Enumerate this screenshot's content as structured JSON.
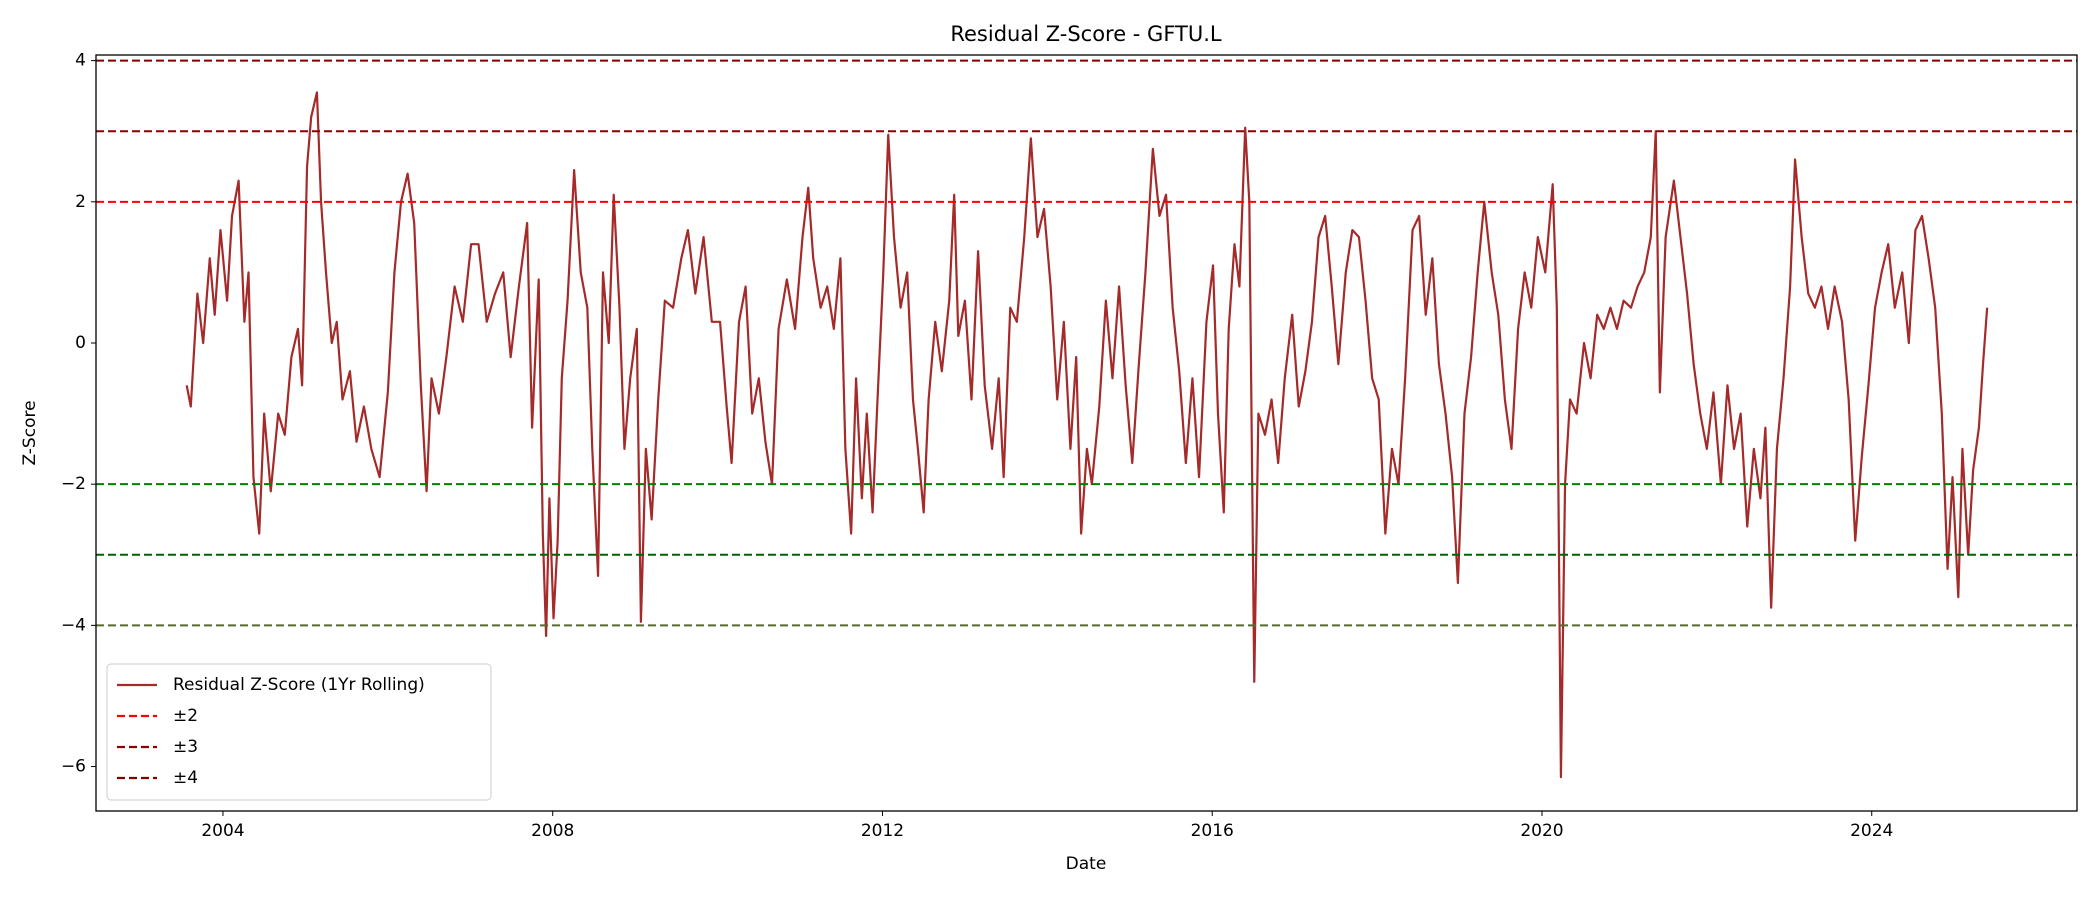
{
  "chart_data": {
    "type": "line",
    "title": "Residual Z-Score - GFTU.L",
    "x_label": "Date",
    "y_label": "Z-Score",
    "x": [
      2003.56,
      2003.61,
      2003.69,
      2003.76,
      2003.84,
      2003.9,
      2003.97,
      2004.05,
      2004.11,
      2004.19,
      2004.26,
      2004.31,
      2004.37,
      2004.44,
      2004.5,
      2004.58,
      2004.67,
      2004.75,
      2004.83,
      2004.91,
      2004.96,
      2005.02,
      2005.07,
      2005.14,
      2005.19,
      2005.25,
      2005.32,
      2005.38,
      2005.45,
      2005.54,
      2005.62,
      2005.71,
      2005.8,
      2005.9,
      2006.0,
      2006.08,
      2006.16,
      2006.24,
      2006.32,
      2006.4,
      2006.47,
      2006.53,
      2006.62,
      2006.71,
      2006.81,
      2006.91,
      2007.01,
      2007.1,
      2007.2,
      2007.3,
      2007.4,
      2007.49,
      2007.59,
      2007.69,
      2007.75,
      2007.83,
      2007.88,
      2007.92,
      2007.96,
      2008.01,
      2008.06,
      2008.11,
      2008.18,
      2008.26,
      2008.34,
      2008.42,
      2008.48,
      2008.55,
      2008.61,
      2008.68,
      2008.74,
      2008.81,
      2008.87,
      2008.94,
      2009.02,
      2009.07,
      2009.13,
      2009.2,
      2009.28,
      2009.36,
      2009.46,
      2009.56,
      2009.64,
      2009.73,
      2009.83,
      2009.93,
      2010.03,
      2010.11,
      2010.17,
      2010.26,
      2010.34,
      2010.42,
      2010.5,
      2010.58,
      2010.66,
      2010.74,
      2010.84,
      2010.94,
      2011.03,
      2011.1,
      2011.16,
      2011.25,
      2011.33,
      2011.41,
      2011.49,
      2011.55,
      2011.62,
      2011.68,
      2011.75,
      2011.81,
      2011.88,
      2011.94,
      2012.01,
      2012.07,
      2012.14,
      2012.22,
      2012.3,
      2012.37,
      2012.43,
      2012.5,
      2012.56,
      2012.64,
      2012.72,
      2012.81,
      2012.87,
      2012.92,
      2013.0,
      2013.08,
      2013.16,
      2013.24,
      2013.33,
      2013.41,
      2013.47,
      2013.55,
      2013.63,
      2013.72,
      2013.8,
      2013.88,
      2013.96,
      2014.04,
      2014.12,
      2014.2,
      2014.28,
      2014.35,
      2014.41,
      2014.48,
      2014.54,
      2014.63,
      2014.71,
      2014.79,
      2014.87,
      2014.95,
      2015.03,
      2015.11,
      2015.19,
      2015.28,
      2015.36,
      2015.44,
      2015.52,
      2015.6,
      2015.68,
      2015.76,
      2015.84,
      2015.93,
      2016.01,
      2016.07,
      2016.14,
      2016.2,
      2016.27,
      2016.33,
      2016.4,
      2016.45,
      2016.51,
      2016.56,
      2016.64,
      2016.72,
      2016.8,
      2016.88,
      2016.97,
      2017.05,
      2017.13,
      2017.21,
      2017.29,
      2017.37,
      2017.45,
      2017.53,
      2017.62,
      2017.7,
      2017.78,
      2017.86,
      2017.94,
      2018.02,
      2018.1,
      2018.18,
      2018.26,
      2018.34,
      2018.43,
      2018.51,
      2018.59,
      2018.67,
      2018.75,
      2018.83,
      2018.91,
      2018.98,
      2019.06,
      2019.14,
      2019.22,
      2019.3,
      2019.39,
      2019.47,
      2019.55,
      2019.63,
      2019.71,
      2019.79,
      2019.87,
      2019.95,
      2020.04,
      2020.13,
      2020.18,
      2020.23,
      2020.28,
      2020.34,
      2020.42,
      2020.51,
      2020.59,
      2020.67,
      2020.75,
      2020.83,
      2020.91,
      2020.99,
      2021.08,
      2021.16,
      2021.24,
      2021.32,
      2021.38,
      2021.43,
      2021.5,
      2021.6,
      2021.68,
      2021.76,
      2021.84,
      2021.92,
      2022.0,
      2022.08,
      2022.17,
      2022.25,
      2022.33,
      2022.41,
      2022.49,
      2022.57,
      2022.65,
      2022.71,
      2022.78,
      2022.85,
      2022.93,
      2023.01,
      2023.07,
      2023.15,
      2023.23,
      2023.31,
      2023.39,
      2023.47,
      2023.55,
      2023.64,
      2023.72,
      2023.8,
      2023.88,
      2023.96,
      2024.04,
      2024.12,
      2024.2,
      2024.28,
      2024.37,
      2024.45,
      2024.53,
      2024.61,
      2024.69,
      2024.77,
      2024.85,
      2024.92,
      2024.98,
      2025.05,
      2025.1,
      2025.17,
      2025.23,
      2025.3,
      2025.35,
      2025.4
    ],
    "series": [
      {
        "name": "Residual Z-Score (1Yr Rolling)",
        "color": "#a52a2a",
        "values": [
          -0.6,
          -0.9,
          0.7,
          0.0,
          1.2,
          0.4,
          1.6,
          0.6,
          1.8,
          2.3,
          0.3,
          1.0,
          -1.9,
          -2.7,
          -1.0,
          -2.1,
          -1.0,
          -1.3,
          -0.2,
          0.2,
          -0.6,
          2.5,
          3.2,
          3.55,
          2.0,
          1.0,
          0.0,
          0.3,
          -0.8,
          -0.4,
          -1.4,
          -0.9,
          -1.5,
          -1.9,
          -0.7,
          1.0,
          2.0,
          2.4,
          1.7,
          -0.6,
          -2.1,
          -0.5,
          -1.0,
          -0.2,
          0.8,
          0.3,
          1.4,
          1.4,
          0.3,
          0.7,
          1.0,
          -0.2,
          0.8,
          1.7,
          -1.2,
          0.9,
          -2.7,
          -4.15,
          -2.2,
          -3.9,
          -2.8,
          -0.5,
          0.6,
          2.45,
          1.0,
          0.5,
          -1.5,
          -3.3,
          1.0,
          0.0,
          2.1,
          0.5,
          -1.5,
          -0.5,
          0.2,
          -3.95,
          -1.5,
          -2.5,
          -0.8,
          0.6,
          0.5,
          1.2,
          1.6,
          0.7,
          1.5,
          0.3,
          0.3,
          -0.9,
          -1.7,
          0.3,
          0.8,
          -1.0,
          -0.5,
          -1.4,
          -2.0,
          0.2,
          0.9,
          0.2,
          1.5,
          2.2,
          1.2,
          0.5,
          0.8,
          0.2,
          1.2,
          -1.5,
          -2.7,
          -0.5,
          -2.2,
          -1.0,
          -2.4,
          -0.8,
          1.0,
          2.95,
          1.5,
          0.5,
          1.0,
          -0.8,
          -1.5,
          -2.4,
          -0.8,
          0.3,
          -0.4,
          0.6,
          2.1,
          0.1,
          0.6,
          -0.8,
          1.3,
          -0.6,
          -1.5,
          -0.5,
          -1.9,
          0.5,
          0.3,
          1.5,
          2.9,
          1.5,
          1.9,
          0.8,
          -0.8,
          0.3,
          -1.5,
          -0.2,
          -2.7,
          -1.5,
          -2.0,
          -0.9,
          0.6,
          -0.5,
          0.8,
          -0.6,
          -1.7,
          -0.3,
          1.0,
          2.75,
          1.8,
          2.1,
          0.5,
          -0.4,
          -1.7,
          -0.5,
          -1.9,
          0.3,
          1.1,
          -1.0,
          -2.4,
          0.2,
          1.4,
          0.8,
          3.05,
          2.0,
          -4.8,
          -1.0,
          -1.3,
          -0.8,
          -1.7,
          -0.5,
          0.4,
          -0.9,
          -0.4,
          0.3,
          1.5,
          1.8,
          0.8,
          -0.3,
          1.0,
          1.6,
          1.5,
          0.6,
          -0.5,
          -0.8,
          -2.7,
          -1.5,
          -2.0,
          -0.5,
          1.6,
          1.8,
          0.4,
          1.2,
          -0.3,
          -1.0,
          -1.9,
          -3.4,
          -1.0,
          -0.2,
          1.0,
          2.0,
          1.0,
          0.4,
          -0.8,
          -1.5,
          0.2,
          1.0,
          0.5,
          1.5,
          1.0,
          2.25,
          0.5,
          -6.15,
          -2.0,
          -0.8,
          -1.0,
          0.0,
          -0.5,
          0.4,
          0.2,
          0.5,
          0.2,
          0.6,
          0.5,
          0.8,
          1.0,
          1.5,
          3.0,
          -0.7,
          1.5,
          2.3,
          1.5,
          0.7,
          -0.3,
          -1.0,
          -1.5,
          -0.7,
          -2.0,
          -0.6,
          -1.5,
          -1.0,
          -2.6,
          -1.5,
          -2.2,
          -1.2,
          -3.75,
          -1.5,
          -0.5,
          0.8,
          2.6,
          1.5,
          0.7,
          0.5,
          0.8,
          0.2,
          0.8,
          0.3,
          -0.8,
          -2.8,
          -1.6,
          -0.6,
          0.5,
          1.0,
          1.4,
          0.5,
          1.0,
          0.0,
          1.6,
          1.8,
          1.2,
          0.5,
          -1.0,
          -3.2,
          -1.9,
          -3.6,
          -1.5,
          -3.0,
          -1.8,
          -1.2,
          -0.3,
          0.5
        ]
      }
    ],
    "reference_lines": [
      {
        "name": "±2",
        "values": [
          2,
          -2
        ],
        "colors": [
          "#ff0000",
          "#008000"
        ]
      },
      {
        "name": "±3",
        "values": [
          3,
          -3
        ],
        "colors": [
          "#8b0000",
          "#006400"
        ]
      },
      {
        "name": "±4",
        "values": [
          4,
          -4
        ],
        "colors": [
          "#800000",
          "#556b2f"
        ]
      }
    ],
    "xlim": [
      2002.46,
      2026.49
    ],
    "xticks": [
      2004,
      2008,
      2012,
      2016,
      2020,
      2024
    ],
    "ylim": [
      -6.63,
      4.08
    ],
    "yticks": [
      {
        "value": -6,
        "label": "−6"
      },
      {
        "value": -4,
        "label": "−4"
      },
      {
        "value": -2,
        "label": "−2"
      },
      0,
      2,
      4
    ],
    "legend": "lower left"
  }
}
